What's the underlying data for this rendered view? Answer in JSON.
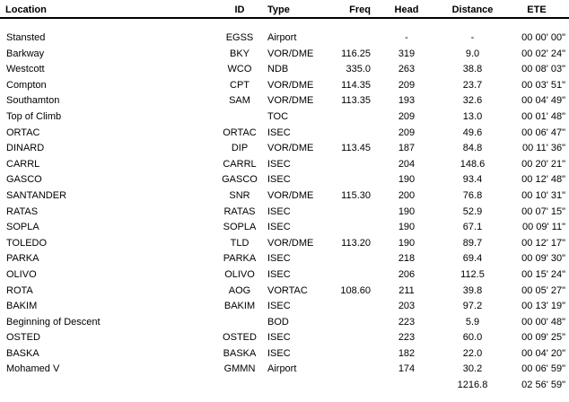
{
  "colors": {
    "background": "#ffffff",
    "text": "#000000",
    "header_rule": "#000000"
  },
  "table": {
    "columns": [
      {
        "key": "location",
        "label": "Location"
      },
      {
        "key": "id",
        "label": "ID"
      },
      {
        "key": "type",
        "label": "Type"
      },
      {
        "key": "freq",
        "label": "Freq"
      },
      {
        "key": "head",
        "label": "Head"
      },
      {
        "key": "distance",
        "label": "Distance"
      },
      {
        "key": "ete",
        "label": "ETE"
      }
    ],
    "rows": [
      {
        "location": "Stansted",
        "id": "EGSS",
        "type": "Airport",
        "freq": "",
        "head": "-",
        "distance": "-",
        "ete": "00 00' 00\""
      },
      {
        "location": "Barkway",
        "id": "BKY",
        "type": "VOR/DME",
        "freq": "116.25",
        "head": "319",
        "distance": "9.0",
        "ete": "00 02' 24\""
      },
      {
        "location": "Westcott",
        "id": "WCO",
        "type": "NDB",
        "freq": "335.0",
        "head": "263",
        "distance": "38.8",
        "ete": "00 08' 03\""
      },
      {
        "location": "Compton",
        "id": "CPT",
        "type": "VOR/DME",
        "freq": "114.35",
        "head": "209",
        "distance": "23.7",
        "ete": "00 03' 51\""
      },
      {
        "location": "Southamton",
        "id": "SAM",
        "type": "VOR/DME",
        "freq": "113.35",
        "head": "193",
        "distance": "32.6",
        "ete": "00 04' 49\""
      },
      {
        "location": "Top of Climb",
        "id": "",
        "type": "TOC",
        "freq": "",
        "head": "209",
        "distance": "13.0",
        "ete": "00 01' 48\""
      },
      {
        "location": "ORTAC",
        "id": "ORTAC",
        "type": "ISEC",
        "freq": "",
        "head": "209",
        "distance": "49.6",
        "ete": "00 06' 47\""
      },
      {
        "location": "DINARD",
        "id": "DIP",
        "type": "VOR/DME",
        "freq": "113.45",
        "head": "187",
        "distance": "84.8",
        "ete": "00 11' 36\""
      },
      {
        "location": "CARRL",
        "id": "CARRL",
        "type": "ISEC",
        "freq": "",
        "head": "204",
        "distance": "148.6",
        "ete": "00 20' 21\""
      },
      {
        "location": "GASCO",
        "id": "GASCO",
        "type": "ISEC",
        "freq": "",
        "head": "190",
        "distance": "93.4",
        "ete": "00 12' 48\""
      },
      {
        "location": "SANTANDER",
        "id": "SNR",
        "type": "VOR/DME",
        "freq": "115.30",
        "head": "200",
        "distance": "76.8",
        "ete": "00 10' 31\""
      },
      {
        "location": "RATAS",
        "id": "RATAS",
        "type": "ISEC",
        "freq": "",
        "head": "190",
        "distance": "52.9",
        "ete": "00 07' 15\""
      },
      {
        "location": "SOPLA",
        "id": "SOPLA",
        "type": "ISEC",
        "freq": "",
        "head": "190",
        "distance": "67.1",
        "ete": "00 09' 11\""
      },
      {
        "location": "TOLEDO",
        "id": "TLD",
        "type": "VOR/DME",
        "freq": "113.20",
        "head": "190",
        "distance": "89.7",
        "ete": "00 12' 17\""
      },
      {
        "location": "PARKA",
        "id": "PARKA",
        "type": "ISEC",
        "freq": "",
        "head": "218",
        "distance": "69.4",
        "ete": "00 09' 30\""
      },
      {
        "location": "OLIVO",
        "id": "OLIVO",
        "type": "ISEC",
        "freq": "",
        "head": "206",
        "distance": "112.5",
        "ete": "00 15' 24\""
      },
      {
        "location": "ROTA",
        "id": "AOG",
        "type": "VORTAC",
        "freq": "108.60",
        "head": "211",
        "distance": "39.8",
        "ete": "00 05' 27\""
      },
      {
        "location": "BAKIM",
        "id": "BAKIM",
        "type": "ISEC",
        "freq": "",
        "head": "203",
        "distance": "97.2",
        "ete": "00 13' 19\""
      },
      {
        "location": "Beginning of Descent",
        "id": "",
        "type": "BOD",
        "freq": "",
        "head": "223",
        "distance": "5.9",
        "ete": "00 00' 48\""
      },
      {
        "location": "OSTED",
        "id": "OSTED",
        "type": "ISEC",
        "freq": "",
        "head": "223",
        "distance": "60.0",
        "ete": "00 09' 25\""
      },
      {
        "location": "BASKA",
        "id": "BASKA",
        "type": "ISEC",
        "freq": "",
        "head": "182",
        "distance": "22.0",
        "ete": "00 04' 20\""
      },
      {
        "location": "Mohamed V",
        "id": "GMMN",
        "type": "Airport",
        "freq": "",
        "head": "174",
        "distance": "30.2",
        "ete": "00 06' 59\""
      }
    ],
    "totals": {
      "distance": "1216.8",
      "ete": "02 56' 59\""
    }
  }
}
